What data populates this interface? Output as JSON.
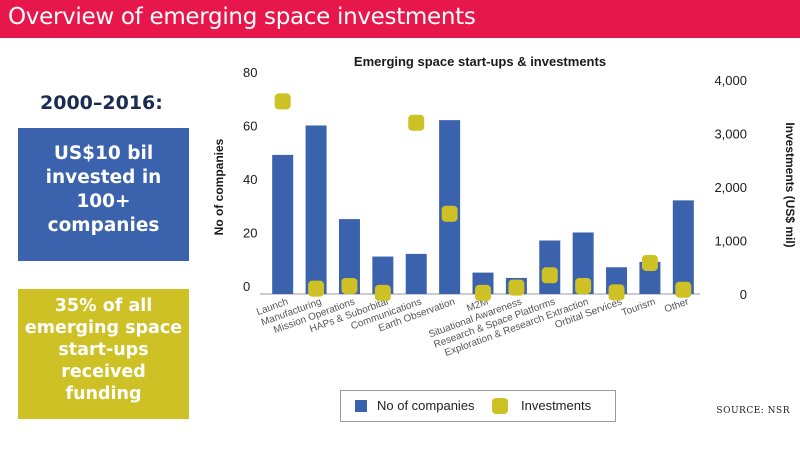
{
  "header": {
    "title": "Overview of emerging space investments"
  },
  "summary": {
    "period": "2000–2016:",
    "invested": "US$10 bil invested in 100+ companies",
    "funded": "35% of all emerging space start-ups received funding"
  },
  "source": "SOURCE: NSR",
  "colors": {
    "header": "#e8174b",
    "bar": "#3b62ad",
    "dot": "#cdc126",
    "box_blue": "#3b62ad",
    "box_yellow": "#cdc126"
  },
  "chart_data": {
    "type": "bar",
    "title": "Emerging space start-ups & investments",
    "categories": [
      "Launch",
      "Manufacturing",
      "Mission Operations",
      "HAPs & Suborbital",
      "Communications",
      "Earth Observation",
      "M2M",
      "Situational Awareness",
      "Research & Space Platforms",
      "Exploration & Research Extraction",
      "Orbital Services",
      "Tourism",
      "Other"
    ],
    "series": [
      {
        "name": "No of companies",
        "type": "bar",
        "axis": "left",
        "values": [
          52,
          63,
          28,
          14,
          15,
          65,
          8,
          6,
          20,
          23,
          10,
          12,
          35
        ]
      },
      {
        "name": "Investments",
        "type": "scatter",
        "axis": "right",
        "values": [
          3600,
          100,
          150,
          20,
          3200,
          1500,
          20,
          120,
          350,
          150,
          30,
          580,
          80
        ]
      }
    ],
    "ylabel": "No of companies",
    "y2label": "Investments (US$ mil)",
    "ylim": [
      0,
      80
    ],
    "y2lim": [
      0,
      4000
    ],
    "yticks": [
      "0",
      "20",
      "40",
      "60",
      "80"
    ],
    "y2ticks": [
      "0",
      "1,000",
      "2,000",
      "3,000",
      "4,000"
    ],
    "grid": false,
    "legend": "bottom"
  }
}
